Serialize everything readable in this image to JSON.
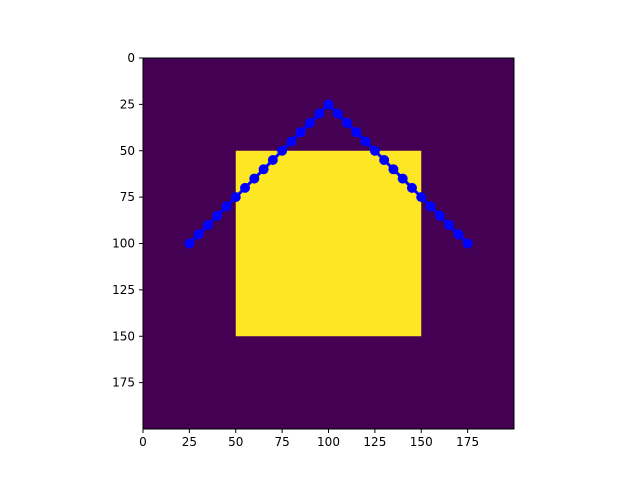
{
  "chart_data": {
    "type": "heatmap",
    "image": {
      "shape": [
        200,
        200
      ],
      "background_value": 0,
      "region": {
        "x": [
          50,
          150
        ],
        "y": [
          50,
          150
        ],
        "value": 1
      },
      "colors": {
        "low": "#440154",
        "high": "#fde725"
      }
    },
    "xlim": [
      0,
      200
    ],
    "ylim": [
      200,
      0
    ],
    "x_ticks": [
      0,
      25,
      50,
      75,
      100,
      125,
      150,
      175
    ],
    "y_ticks": [
      0,
      25,
      50,
      75,
      100,
      125,
      150,
      175
    ],
    "series": [
      {
        "type": "line",
        "color": "#0000ff",
        "marker": "circle",
        "points": [
          [
            25,
            100
          ],
          [
            30,
            95
          ],
          [
            35,
            90
          ],
          [
            40,
            85
          ],
          [
            45,
            80
          ],
          [
            50,
            75
          ],
          [
            55,
            70
          ],
          [
            60,
            65
          ],
          [
            65,
            60
          ],
          [
            70,
            55
          ],
          [
            75,
            50
          ],
          [
            80,
            45
          ],
          [
            85,
            40
          ],
          [
            90,
            35
          ],
          [
            95,
            30
          ],
          [
            100,
            25
          ],
          [
            105,
            30
          ],
          [
            110,
            35
          ],
          [
            115,
            40
          ],
          [
            120,
            45
          ],
          [
            125,
            50
          ],
          [
            130,
            55
          ],
          [
            135,
            60
          ],
          [
            140,
            65
          ],
          [
            145,
            70
          ],
          [
            150,
            75
          ],
          [
            155,
            80
          ],
          [
            160,
            85
          ],
          [
            165,
            90
          ],
          [
            170,
            95
          ],
          [
            175,
            100
          ]
        ]
      }
    ]
  }
}
